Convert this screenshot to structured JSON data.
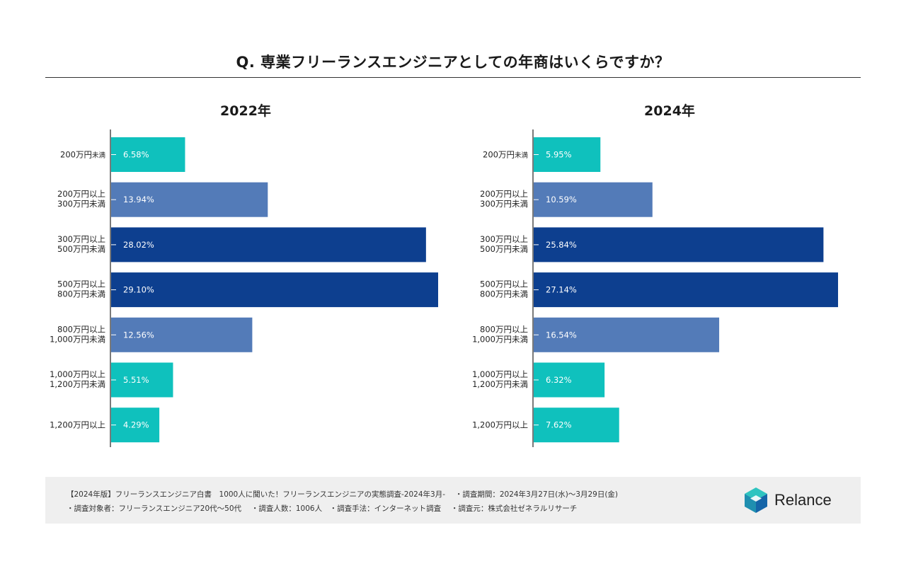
{
  "title": "Q. 専業フリーランスエンジニアとしての年商はいくらですか？",
  "colors": {
    "teal": "#0fc1bd",
    "mid_blue": "#537bb8",
    "dark_blue": "#0d3f8f",
    "axis": "#333333"
  },
  "chart_data": [
    {
      "type": "bar",
      "orientation": "horizontal",
      "title": "2022年",
      "categories": [
        [
          "200万円",
          "未満"
        ],
        [
          "200万円以上",
          "300万円未満"
        ],
        [
          "300万円以上",
          "500万円未満"
        ],
        [
          "500万円以上",
          "800万円未満"
        ],
        [
          "800万円以上",
          "1,000万円未満"
        ],
        [
          "1,000万円以上",
          "1,200万円未満"
        ],
        [
          "1,200万円以上"
        ]
      ],
      "values": [
        6.58,
        13.94,
        28.02,
        29.1,
        12.56,
        5.51,
        4.29
      ],
      "value_labels": [
        "6.58%",
        "13.94%",
        "28.02%",
        "29.10%",
        "12.56%",
        "5.51%",
        "4.29%"
      ],
      "bar_colors": [
        "teal",
        "mid_blue",
        "dark_blue",
        "dark_blue",
        "mid_blue",
        "teal",
        "teal"
      ],
      "unit": "%",
      "xlim": [
        0,
        29.1
      ],
      "grid": false
    },
    {
      "type": "bar",
      "orientation": "horizontal",
      "title": "2024年",
      "categories": [
        [
          "200万円",
          "未満"
        ],
        [
          "200万円以上",
          "300万円未満"
        ],
        [
          "300万円以上",
          "500万円未満"
        ],
        [
          "500万円以上",
          "800万円未満"
        ],
        [
          "800万円以上",
          "1,000万円未満"
        ],
        [
          "1,000万円以上",
          "1,200万円未満"
        ],
        [
          "1,200万円以上"
        ]
      ],
      "values": [
        5.95,
        10.59,
        25.84,
        27.14,
        16.54,
        6.32,
        7.62
      ],
      "value_labels": [
        "5.95%",
        "10.59%",
        "25.84%",
        "27.14%",
        "16.54%",
        "6.32%",
        "7.62%"
      ],
      "bar_colors": [
        "teal",
        "mid_blue",
        "dark_blue",
        "dark_blue",
        "mid_blue",
        "teal",
        "teal"
      ],
      "unit": "%",
      "xlim": [
        0,
        27.14
      ],
      "grid": false
    }
  ],
  "footer": {
    "line1": "【2024年版】フリーランスエンジニア白書　1000人に聞いた！フリーランスエンジニアの実態調査-2024年3月-　 ・調査期間：2024年3月27日(水)〜3月29日(金)",
    "line2": "・調査対象者：フリーランスエンジニア20代〜50代　 ・調査人数：1006人　・調査手法：インターネット調査　 ・調査元：株式会社ゼネラルリサーチ"
  },
  "logo": {
    "icon": "relance-cube-icon",
    "text": "Relance"
  }
}
